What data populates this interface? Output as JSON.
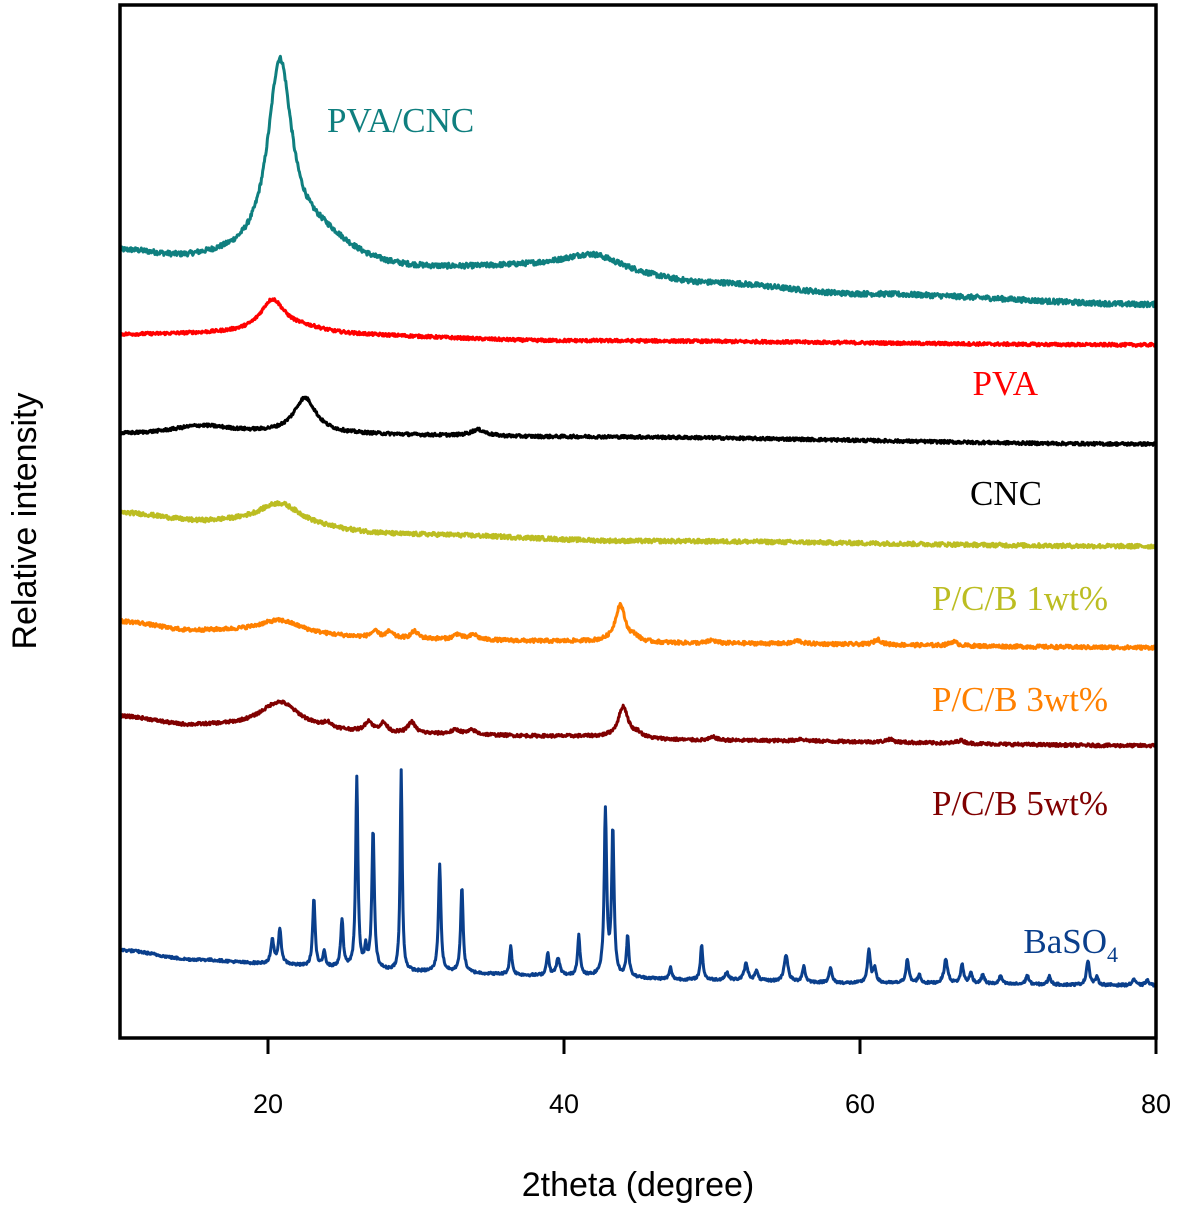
{
  "chart_data": {
    "type": "line",
    "title": "",
    "xlabel": "2theta (degree)",
    "ylabel": "Relative intensity",
    "xlim": [
      10,
      80
    ],
    "ylim": [
      0,
      100
    ],
    "xticks": [
      20,
      40,
      60,
      80
    ],
    "xtick_labels": [
      "20",
      "40",
      "60",
      "80"
    ],
    "yticks": [],
    "grid": false,
    "legend": "inline labels to the right of each trace",
    "series": [
      {
        "name": "PVA/CNC",
        "label": "PVA/CNC",
        "color": "#0f7f7f",
        "baseline": [
          [
            10,
            76.0
          ],
          [
            15,
            75.1
          ],
          [
            25,
            73.8
          ],
          [
            40,
            74.6
          ],
          [
            50,
            73.0
          ],
          [
            60,
            72.0
          ],
          [
            80,
            71.0
          ]
        ],
        "peaks": [
          [
            20.8,
            18.6,
            1.0
          ],
          [
            23.5,
            3.5,
            3.0
          ],
          [
            42.0,
            1.3,
            2.2
          ]
        ],
        "noise": 0.25
      },
      {
        "name": "PVA",
        "label": "PVA",
        "color": "#ff0000",
        "baseline": [
          [
            10,
            68.1
          ],
          [
            18,
            68.2
          ],
          [
            25,
            68.0
          ],
          [
            40,
            67.5
          ],
          [
            80,
            67.1
          ]
        ],
        "peaks": [
          [
            20.3,
            3.1,
            1.0
          ],
          [
            22.5,
            0.6,
            2.0
          ]
        ],
        "noise": 0.15
      },
      {
        "name": "CNC",
        "label": "CNC",
        "color": "#000000",
        "baseline": [
          [
            10,
            58.4
          ],
          [
            20,
            58.5
          ],
          [
            40,
            58.2
          ],
          [
            80,
            57.5
          ]
        ],
        "peaks": [
          [
            15.5,
            0.8,
            2.5
          ],
          [
            22.5,
            3.4,
            0.9
          ],
          [
            34.2,
            0.6,
            0.6
          ]
        ],
        "noise": 0.15
      },
      {
        "name": "P/C/B 1wt%",
        "label": "P/C/B 1wt%",
        "color": "#bcbd22",
        "baseline": [
          [
            10,
            50.8
          ],
          [
            16,
            49.9
          ],
          [
            30,
            48.7
          ],
          [
            45,
            48.1
          ],
          [
            80,
            47.6
          ]
        ],
        "peaks": [
          [
            20.8,
            2.2,
            1.8
          ]
        ],
        "noise": 0.2
      },
      {
        "name": "P/C/B 3wt%",
        "label": "P/C/B 3wt%",
        "color": "#ff8000",
        "baseline": [
          [
            10,
            40.3
          ],
          [
            15,
            39.4
          ],
          [
            30,
            38.6
          ],
          [
            40,
            38.4
          ],
          [
            50,
            38.2
          ],
          [
            80,
            37.8
          ]
        ],
        "peaks": [
          [
            20.8,
            1.3,
            1.8
          ],
          [
            27.2,
            0.6,
            0.3
          ],
          [
            28.2,
            0.6,
            0.3
          ],
          [
            29.9,
            0.7,
            0.3
          ],
          [
            32.8,
            0.5,
            0.3
          ],
          [
            33.9,
            0.5,
            0.3
          ],
          [
            43.8,
            3.6,
            0.4
          ],
          [
            44.8,
            0.4,
            0.3
          ],
          [
            50.0,
            0.3,
            0.3
          ],
          [
            55.8,
            0.3,
            0.3
          ],
          [
            61.2,
            0.5,
            0.3
          ],
          [
            66.3,
            0.4,
            0.3
          ]
        ],
        "noise": 0.18
      },
      {
        "name": "P/C/B 5wt%",
        "label": "P/C/B 5wt%",
        "color": "#800000",
        "baseline": [
          [
            10,
            31.1
          ],
          [
            15,
            30.2
          ],
          [
            30,
            29.4
          ],
          [
            40,
            29.2
          ],
          [
            50,
            28.8
          ],
          [
            80,
            28.3
          ]
        ],
        "peaks": [
          [
            20.8,
            2.6,
            1.6
          ],
          [
            24.0,
            0.5,
            0.3
          ],
          [
            26.8,
            1.0,
            0.3
          ],
          [
            27.8,
            0.9,
            0.3
          ],
          [
            29.7,
            1.1,
            0.3
          ],
          [
            32.7,
            0.4,
            0.4
          ],
          [
            33.8,
            0.4,
            0.3
          ],
          [
            44.0,
            3.0,
            0.4
          ],
          [
            45.0,
            0.4,
            0.3
          ],
          [
            50.1,
            0.3,
            0.3
          ],
          [
            56.0,
            0.2,
            0.3
          ],
          [
            62.0,
            0.3,
            0.3
          ],
          [
            66.8,
            0.3,
            0.3
          ]
        ],
        "noise": 0.15
      },
      {
        "name": "BaSO4",
        "label": "BaSO",
        "label_subscript": "4",
        "color": "#0a3f8c",
        "baseline": [
          [
            10,
            8.5
          ],
          [
            15,
            7.6
          ],
          [
            20,
            7.2
          ],
          [
            24,
            6.8
          ],
          [
            30,
            6.4
          ],
          [
            40,
            6.0
          ],
          [
            50,
            5.6
          ],
          [
            60,
            5.3
          ],
          [
            80,
            5.1
          ]
        ],
        "peaks": [
          [
            20.3,
            2.2,
            0.12
          ],
          [
            20.8,
            3.2,
            0.12
          ],
          [
            23.1,
            6.6,
            0.1
          ],
          [
            23.8,
            1.6,
            0.1
          ],
          [
            25.0,
            4.6,
            0.1
          ],
          [
            26.0,
            18.4,
            0.09
          ],
          [
            26.6,
            1.8,
            0.1
          ],
          [
            27.1,
            13.4,
            0.1
          ],
          [
            29.0,
            19.4,
            0.08
          ],
          [
            31.6,
            10.3,
            0.1
          ],
          [
            33.1,
            8.2,
            0.1
          ],
          [
            36.4,
            2.7,
            0.1
          ],
          [
            38.9,
            2.2,
            0.1
          ],
          [
            39.6,
            1.6,
            0.15
          ],
          [
            41.0,
            3.9,
            0.1
          ],
          [
            42.8,
            16.0,
            0.1
          ],
          [
            43.3,
            14.0,
            0.1
          ],
          [
            44.3,
            4.0,
            0.1
          ],
          [
            47.2,
            1.1,
            0.1
          ],
          [
            49.3,
            3.4,
            0.1
          ],
          [
            51.0,
            0.7,
            0.15
          ],
          [
            52.3,
            1.6,
            0.15
          ],
          [
            53.0,
            0.9,
            0.12
          ],
          [
            55.0,
            2.6,
            0.15
          ],
          [
            56.2,
            1.5,
            0.12
          ],
          [
            58.0,
            1.4,
            0.12
          ],
          [
            60.6,
            3.1,
            0.12
          ],
          [
            61.0,
            1.4,
            0.12
          ],
          [
            63.2,
            2.3,
            0.12
          ],
          [
            64.0,
            0.8,
            0.12
          ],
          [
            65.8,
            2.3,
            0.15
          ],
          [
            66.9,
            1.8,
            0.12
          ],
          [
            67.5,
            1.0,
            0.12
          ],
          [
            68.3,
            0.9,
            0.12
          ],
          [
            69.5,
            0.8,
            0.12
          ],
          [
            71.3,
            0.9,
            0.12
          ],
          [
            72.8,
            0.8,
            0.12
          ],
          [
            75.4,
            2.4,
            0.12
          ],
          [
            76.0,
            0.7,
            0.12
          ],
          [
            78.5,
            0.6,
            0.12
          ],
          [
            79.4,
            0.5,
            0.12
          ]
        ],
        "noise": 0.12
      }
    ]
  }
}
